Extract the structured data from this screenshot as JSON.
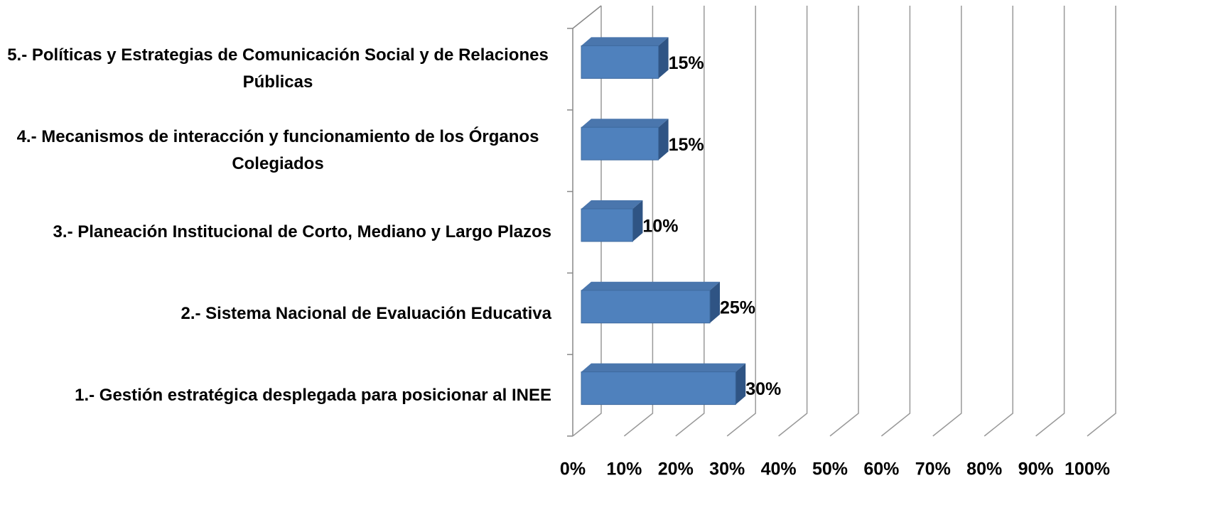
{
  "chart_data": {
    "type": "bar3d_horizontal",
    "categories": [
      "1.- Gestión estratégica desplegada para posicionar al INEE",
      "2.- Sistema Nacional de Evaluación Educativa",
      "3.- Planeación Institucional de Corto, Mediano y Largo Plazos",
      "4.- Mecanismos de interacción y funcionamiento de los Órganos Colegiados",
      "5.- Políticas y Estrategias de Comunicación Social y de Relaciones Públicas"
    ],
    "values": [
      30,
      25,
      10,
      15,
      15
    ],
    "value_labels": [
      "30%",
      "25%",
      "10%",
      "15%",
      "15%"
    ],
    "color": "#4f81bd",
    "xlim": [
      0,
      100
    ],
    "xticks": [
      {
        "value": 0,
        "label": "0%"
      },
      {
        "value": 10,
        "label": "10%"
      },
      {
        "value": 20,
        "label": "20%"
      },
      {
        "value": 30,
        "label": "30%"
      },
      {
        "value": 40,
        "label": "40%"
      },
      {
        "value": 50,
        "label": "50%"
      },
      {
        "value": 60,
        "label": "60%"
      },
      {
        "value": 70,
        "label": "70%"
      },
      {
        "value": 80,
        "label": "80%"
      },
      {
        "value": 90,
        "label": "90%"
      },
      {
        "value": 100,
        "label": "100%"
      }
    ],
    "grid": true
  }
}
